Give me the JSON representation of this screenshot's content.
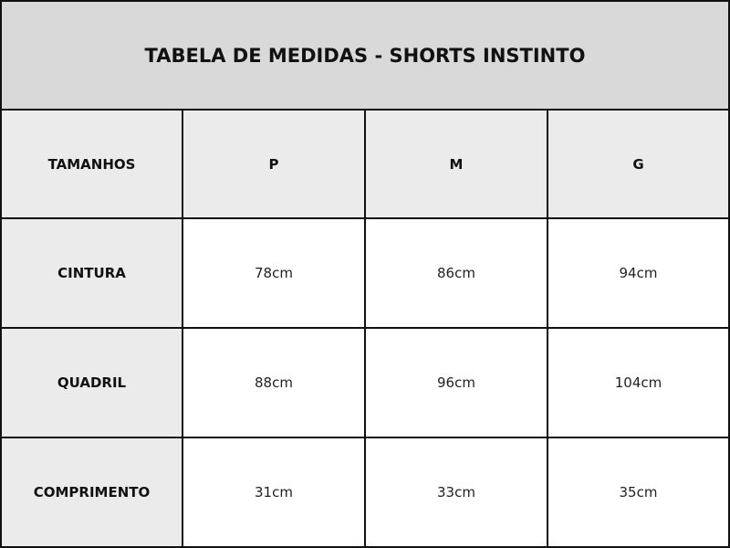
{
  "title": "TABELA DE MEDIDAS - SHORTS INSTINTO",
  "table": {
    "headers": [
      "TAMANHOS",
      "P",
      "M",
      "G"
    ],
    "rows": [
      {
        "label": "CINTURA",
        "values": [
          "78cm",
          "86cm",
          "94cm"
        ]
      },
      {
        "label": "QUADRIL",
        "values": [
          "88cm",
          "96cm",
          "104cm"
        ]
      },
      {
        "label": "COMPRIMENTO",
        "values": [
          "31cm",
          "33cm",
          "35cm"
        ]
      }
    ]
  },
  "colors": {
    "title_bg": "#d9d9d9",
    "header_bg": "#ebebeb",
    "border": "#111111"
  }
}
